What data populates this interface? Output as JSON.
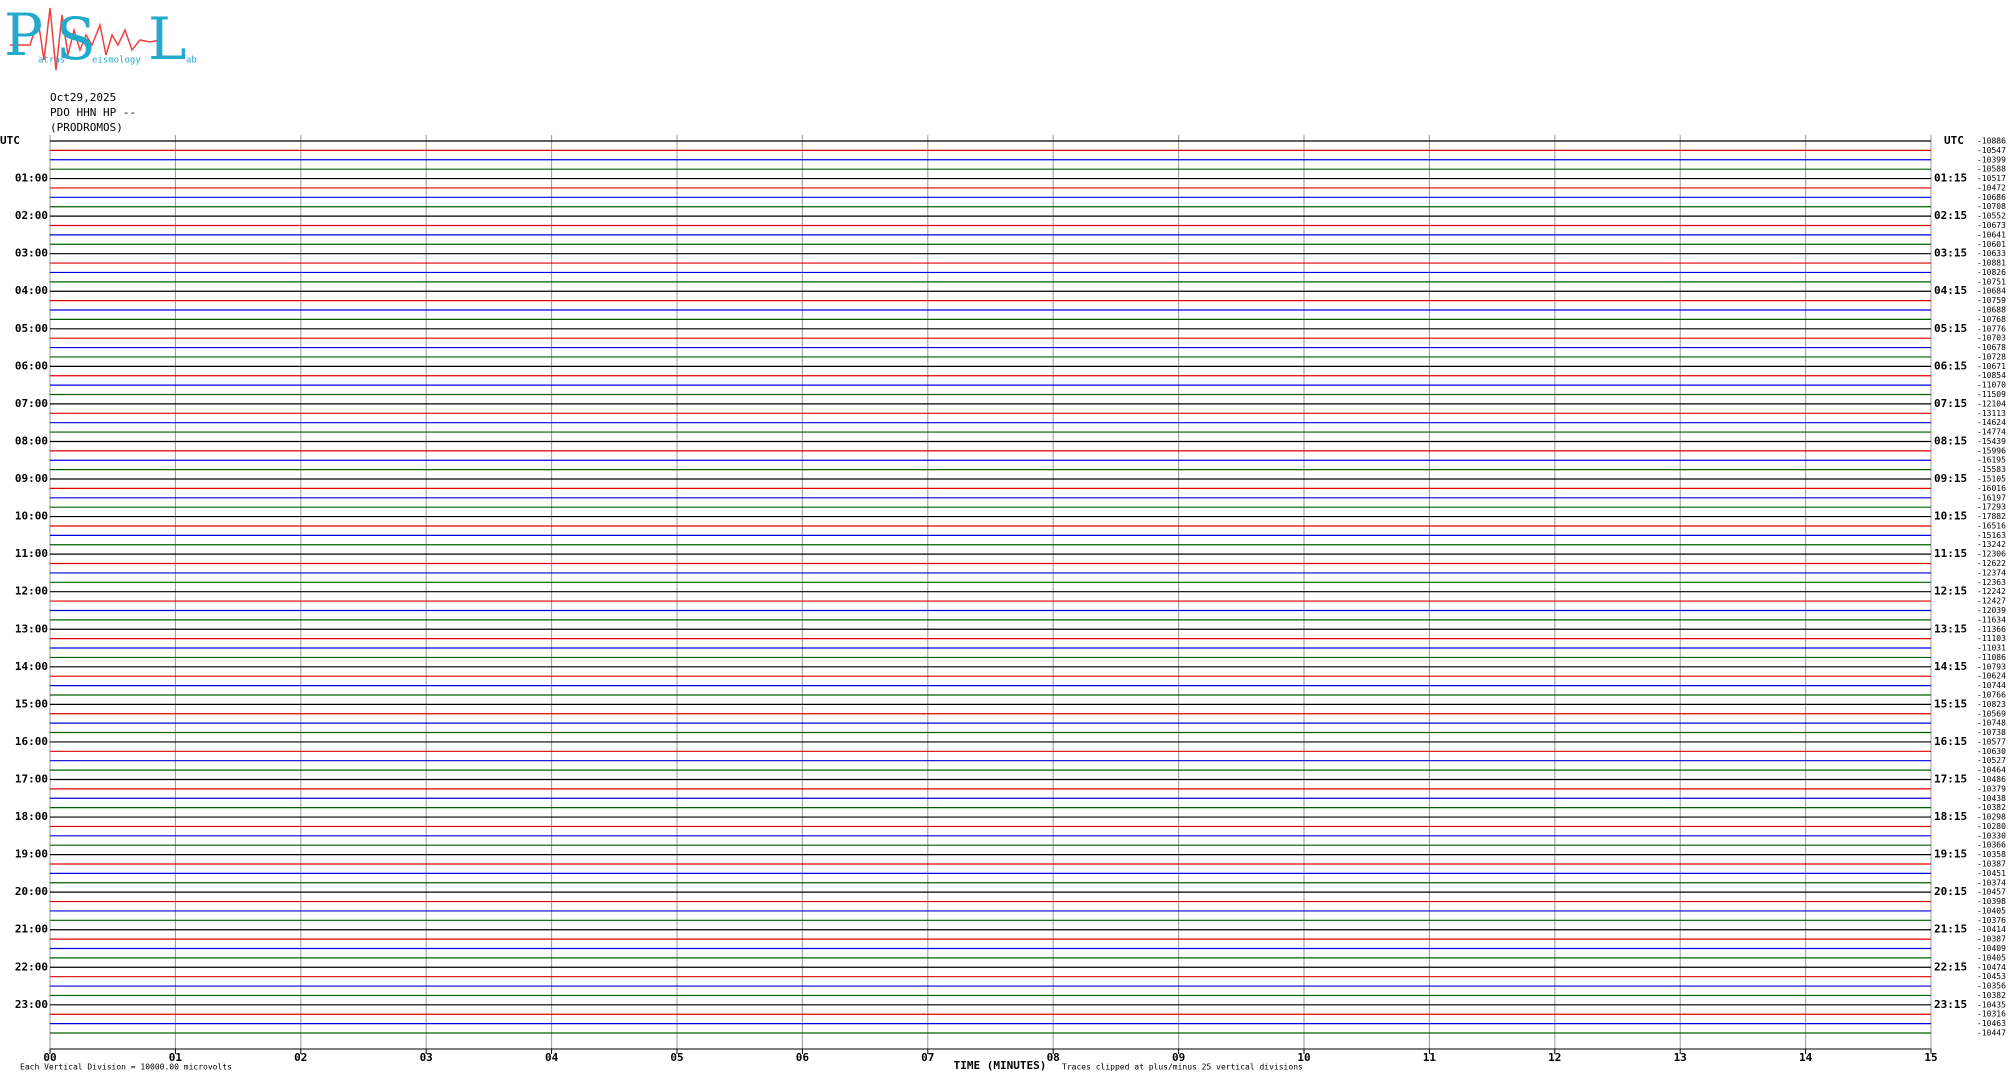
{
  "logo": {
    "letters": [
      "P",
      "S",
      "L"
    ],
    "words": [
      "atras",
      "eismology",
      "ab"
    ]
  },
  "header": [
    "Oct29,2025",
    "PDO HHN HP --",
    "(PRODROMOS)"
  ],
  "left_labels": [
    "UTC",
    "01:00",
    "02:00",
    "03:00",
    "04:00",
    "05:00",
    "06:00",
    "07:00",
    "08:00",
    "09:00",
    "10:00",
    "11:00",
    "12:00",
    "13:00",
    "14:00",
    "15:00",
    "16:00",
    "17:00",
    "18:00",
    "19:00",
    "20:00",
    "21:00",
    "22:00",
    "23:00"
  ],
  "right_labels": [
    "UTC",
    "01:15",
    "02:15",
    "03:15",
    "04:15",
    "05:15",
    "06:15",
    "07:15",
    "08:15",
    "09:15",
    "10:15",
    "11:15",
    "12:15",
    "13:15",
    "14:15",
    "15:15",
    "16:15",
    "17:15",
    "18:15",
    "19:15",
    "20:15",
    "21:15",
    "22:15",
    "23:15"
  ],
  "trace_offsets": [
    "-10886",
    "-10547",
    "-10399",
    "-10588",
    "-10517",
    "-10472",
    "-10686",
    "-10708",
    "-10552",
    "-10673",
    "-10641",
    "-10601",
    "-10633",
    "-10881",
    "-10826",
    "-10751",
    "-10684",
    "-10759",
    "-10688",
    "-10768",
    "-10776",
    "-10703",
    "-10678",
    "-10728",
    "-10671",
    "-10854",
    "-11070",
    "-11509",
    "-12104",
    "-13113",
    "-14624",
    "-14774",
    "-15439",
    "-15996",
    "-16195",
    "-15583",
    "-15105",
    "-16016",
    "-16197",
    "-17293",
    "-17882",
    "-16516",
    "-15163",
    "-13242",
    "-12306",
    "-12622",
    "-12374",
    "-12363",
    "-12242",
    "-12427",
    "-12039",
    "-11634",
    "-11366",
    "-11103",
    "-11031",
    "-11086",
    "-10793",
    "-10624",
    "-10744",
    "-10766",
    "-10823",
    "-10569",
    "-10748",
    "-10738",
    "-10577",
    "-10630",
    "-10527",
    "-10464",
    "-10486",
    "-10379",
    "-10438",
    "-10382",
    "-10298",
    "-10280",
    "-10330",
    "-10366",
    "-10358",
    "-10387",
    "-10451",
    "-10374",
    "-10457",
    "-10398",
    "-10405",
    "-10376",
    "-10414",
    "-10387",
    "-10409",
    "-10405",
    "-10474",
    "-10453",
    "-10356",
    "-10382",
    "-10435",
    "-10316",
    "-10463",
    "-10447"
  ],
  "time_axis": {
    "ticks": [
      "00",
      "01",
      "02",
      "03",
      "04",
      "05",
      "06",
      "07",
      "08",
      "09",
      "10",
      "11",
      "12",
      "13",
      "14",
      "15"
    ],
    "title": "TIME (MINUTES)"
  },
  "footer": {
    "left": "Each Vertical Division = 10000.00 microvolts",
    "right": "Traces clipped at plus/minus 25 vertical divisions"
  }
}
